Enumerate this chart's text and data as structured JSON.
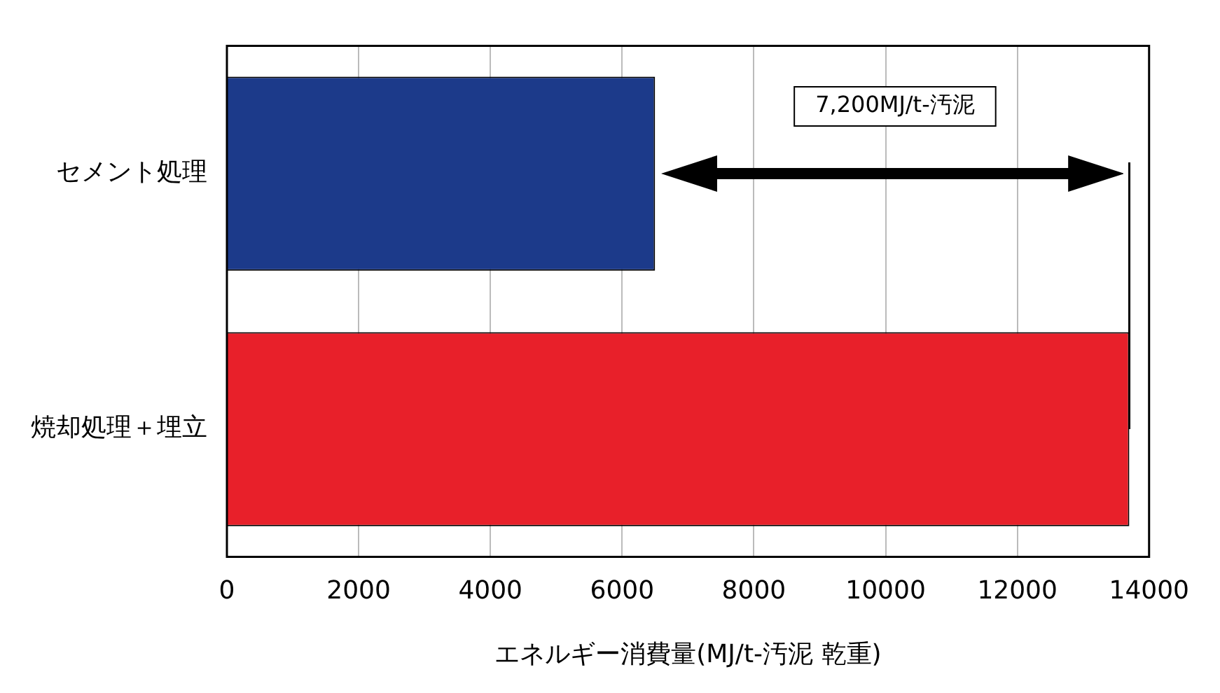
{
  "chart_data": {
    "type": "bar",
    "orientation": "horizontal",
    "xlabel": "エネルギー消費量(MJ/t-汚泥 乾重)",
    "categories": [
      "セメント処理",
      "焼却処理＋埋立"
    ],
    "values": [
      6500,
      13700
    ],
    "colors": [
      "#1c3a8a",
      "#e8202a"
    ],
    "xlim": [
      0,
      14000
    ],
    "xticks": [
      0,
      2000,
      4000,
      6000,
      8000,
      10000,
      12000,
      14000
    ],
    "grid": "x",
    "legend": false,
    "ref_lines": [
      {
        "axis": "x",
        "value": 13700,
        "color": "#000000"
      }
    ],
    "annotations": [
      "7,200MJ/t-汚泥"
    ]
  }
}
